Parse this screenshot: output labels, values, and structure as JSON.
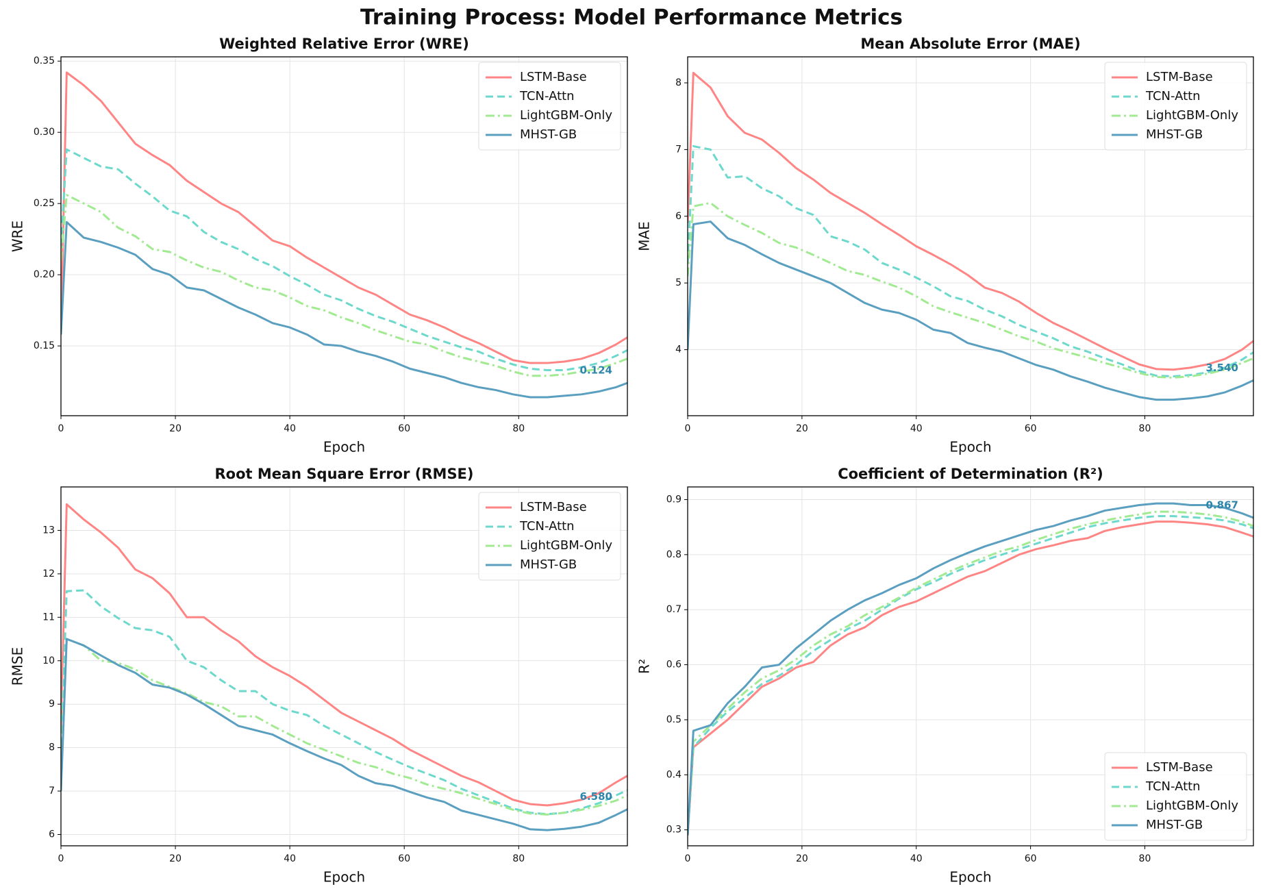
{
  "title": "Training Process: Model Performance Metrics",
  "chart_data": [
    {
      "type": "line",
      "title": "Weighted Relative Error (WRE)",
      "xlabel": "Epoch",
      "ylabel": "WRE",
      "xlim": [
        0,
        99
      ],
      "ylim": [
        0.101,
        0.353
      ],
      "xticks": [
        0,
        20,
        40,
        60,
        80
      ],
      "yticks": [
        0.15,
        {
          "value": 0.2,
          "label": "0.20"
        },
        0.25,
        {
          "value": 0.3,
          "label": "0.30"
        },
        0.35
      ],
      "grid": true,
      "legend": "upper right",
      "x": [
        0,
        1,
        4,
        7,
        10,
        13,
        16,
        19,
        22,
        25,
        28,
        31,
        34,
        37,
        40,
        43,
        46,
        49,
        52,
        55,
        58,
        61,
        64,
        67,
        70,
        73,
        76,
        79,
        82,
        85,
        88,
        91,
        94,
        97,
        99
      ],
      "series": [
        {
          "name": "LSTM-Base",
          "color": "#ff8585",
          "linestyle": "solid",
          "values": [
            0.16,
            0.342,
            0.333,
            0.322,
            0.307,
            0.292,
            0.284,
            0.277,
            0.266,
            0.258,
            0.25,
            0.244,
            0.234,
            0.224,
            0.22,
            0.212,
            0.205,
            0.198,
            0.191,
            0.186,
            0.179,
            0.172,
            0.168,
            0.163,
            0.157,
            0.152,
            0.146,
            0.14,
            0.138,
            0.138,
            0.139,
            0.141,
            0.145,
            0.151,
            0.156
          ]
        },
        {
          "name": "TCN-Attn",
          "color": "#6dd8cc",
          "linestyle": "dashed",
          "values": [
            0.22,
            0.288,
            0.282,
            0.276,
            0.274,
            0.264,
            0.255,
            0.245,
            0.241,
            0.23,
            0.223,
            0.218,
            0.211,
            0.206,
            0.199,
            0.193,
            0.186,
            0.182,
            0.176,
            0.171,
            0.167,
            0.162,
            0.157,
            0.153,
            0.149,
            0.146,
            0.141,
            0.137,
            0.134,
            0.133,
            0.133,
            0.135,
            0.138,
            0.143,
            0.147
          ]
        },
        {
          "name": "LightGBM-Only",
          "color": "#a2ea92",
          "linestyle": "dashdot",
          "values": [
            0.21,
            0.256,
            0.25,
            0.244,
            0.233,
            0.227,
            0.218,
            0.216,
            0.21,
            0.205,
            0.202,
            0.196,
            0.191,
            0.189,
            0.184,
            0.178,
            0.175,
            0.17,
            0.166,
            0.161,
            0.157,
            0.153,
            0.151,
            0.146,
            0.142,
            0.139,
            0.136,
            0.132,
            0.129,
            0.129,
            0.13,
            0.132,
            0.134,
            0.138,
            0.141
          ]
        },
        {
          "name": "MHST-GB",
          "color": "#5a9fc0",
          "linestyle": "solid",
          "values": [
            0.158,
            0.237,
            0.226,
            0.223,
            0.219,
            0.214,
            0.204,
            0.2,
            0.191,
            0.189,
            0.183,
            0.177,
            0.172,
            0.166,
            0.163,
            0.158,
            0.151,
            0.15,
            0.146,
            0.143,
            0.139,
            0.134,
            0.131,
            0.128,
            0.124,
            0.121,
            0.119,
            0.116,
            0.114,
            0.114,
            0.115,
            0.116,
            0.118,
            0.121,
            0.124
          ]
        }
      ],
      "annotation": {
        "text": "0.124",
        "value": 0.124,
        "color": "#2e86ab"
      }
    },
    {
      "type": "line",
      "title": "Mean Absolute Error (MAE)",
      "xlabel": "Epoch",
      "ylabel": "MAE",
      "xlim": [
        0,
        99
      ],
      "ylim": [
        3.01,
        8.39
      ],
      "xticks": [
        0,
        20,
        40,
        60,
        80
      ],
      "yticks": [
        4,
        5,
        6,
        7,
        8
      ],
      "grid": true,
      "legend": "upper right",
      "x": [
        0,
        1,
        4,
        7,
        10,
        13,
        16,
        19,
        22,
        25,
        28,
        31,
        34,
        37,
        40,
        43,
        46,
        49,
        52,
        55,
        58,
        61,
        64,
        67,
        70,
        73,
        76,
        79,
        82,
        85,
        88,
        91,
        94,
        97,
        99
      ],
      "series": [
        {
          "name": "LSTM-Base",
          "color": "#ff8585",
          "linestyle": "solid",
          "values": [
            5.9,
            8.15,
            7.93,
            7.5,
            7.25,
            7.15,
            6.95,
            6.72,
            6.55,
            6.35,
            6.2,
            6.05,
            5.88,
            5.72,
            5.55,
            5.42,
            5.28,
            5.12,
            4.93,
            4.85,
            4.72,
            4.55,
            4.4,
            4.28,
            4.15,
            4.02,
            3.9,
            3.78,
            3.71,
            3.7,
            3.73,
            3.78,
            3.86,
            4.0,
            4.13
          ]
        },
        {
          "name": "TCN-Attn",
          "color": "#6dd8cc",
          "linestyle": "dashed",
          "values": [
            5.3,
            7.05,
            7.0,
            6.58,
            6.6,
            6.42,
            6.3,
            6.12,
            6.02,
            5.7,
            5.62,
            5.5,
            5.3,
            5.2,
            5.08,
            4.95,
            4.8,
            4.73,
            4.6,
            4.5,
            4.37,
            4.27,
            4.17,
            4.05,
            3.97,
            3.87,
            3.78,
            3.68,
            3.61,
            3.6,
            3.62,
            3.66,
            3.73,
            3.85,
            3.96
          ]
        },
        {
          "name": "LightGBM-Only",
          "color": "#a2ea92",
          "linestyle": "dashdot",
          "values": [
            5.1,
            6.15,
            6.2,
            6.0,
            5.87,
            5.75,
            5.6,
            5.53,
            5.42,
            5.3,
            5.18,
            5.12,
            5.02,
            4.93,
            4.8,
            4.65,
            4.56,
            4.48,
            4.4,
            4.3,
            4.2,
            4.12,
            4.02,
            3.95,
            3.88,
            3.8,
            3.73,
            3.65,
            3.59,
            3.58,
            3.6,
            3.64,
            3.7,
            3.8,
            3.87
          ]
        },
        {
          "name": "MHST-GB",
          "color": "#5a9fc0",
          "linestyle": "solid",
          "values": [
            4.0,
            5.88,
            5.92,
            5.67,
            5.57,
            5.43,
            5.3,
            5.2,
            5.1,
            5.0,
            4.85,
            4.7,
            4.6,
            4.55,
            4.45,
            4.3,
            4.25,
            4.1,
            4.03,
            3.97,
            3.87,
            3.77,
            3.7,
            3.6,
            3.52,
            3.43,
            3.36,
            3.29,
            3.25,
            3.25,
            3.27,
            3.3,
            3.36,
            3.46,
            3.54
          ]
        }
      ],
      "annotation": {
        "text": "3.540",
        "value": 3.54,
        "color": "#2e86ab"
      }
    },
    {
      "type": "line",
      "title": "Root Mean Square Error (RMSE)",
      "xlabel": "Epoch",
      "ylabel": "RMSE",
      "xlim": [
        0,
        99
      ],
      "ylim": [
        5.74,
        14.0
      ],
      "xticks": [
        0,
        20,
        40,
        60,
        80
      ],
      "yticks": [
        6,
        7,
        8,
        9,
        10,
        11,
        12,
        13
      ],
      "grid": true,
      "legend": "upper right",
      "x": [
        0,
        1,
        4,
        7,
        10,
        13,
        16,
        19,
        22,
        25,
        28,
        31,
        34,
        37,
        40,
        43,
        46,
        49,
        52,
        55,
        58,
        61,
        64,
        67,
        70,
        73,
        76,
        79,
        82,
        85,
        88,
        91,
        94,
        97,
        99
      ],
      "series": [
        {
          "name": "LSTM-Base",
          "color": "#ff8585",
          "linestyle": "solid",
          "values": [
            8.5,
            13.6,
            13.25,
            12.95,
            12.6,
            12.1,
            11.9,
            11.55,
            11.0,
            11.0,
            10.7,
            10.45,
            10.1,
            9.85,
            9.65,
            9.4,
            9.1,
            8.8,
            8.6,
            8.4,
            8.2,
            7.95,
            7.75,
            7.55,
            7.35,
            7.2,
            7.0,
            6.8,
            6.7,
            6.67,
            6.72,
            6.8,
            6.95,
            7.2,
            7.35
          ]
        },
        {
          "name": "TCN-Attn",
          "color": "#6dd8cc",
          "linestyle": "dashed",
          "values": [
            7.8,
            11.6,
            11.62,
            11.25,
            10.98,
            10.75,
            10.7,
            10.55,
            10.0,
            9.85,
            9.55,
            9.3,
            9.3,
            9.0,
            8.85,
            8.75,
            8.5,
            8.3,
            8.1,
            7.9,
            7.72,
            7.55,
            7.4,
            7.25,
            7.05,
            6.9,
            6.75,
            6.6,
            6.5,
            6.47,
            6.5,
            6.6,
            6.72,
            6.9,
            7.02
          ]
        },
        {
          "name": "LightGBM-Only",
          "color": "#a2ea92",
          "linestyle": "dashdot",
          "values": [
            7.5,
            10.5,
            10.35,
            10.0,
            9.95,
            9.8,
            9.55,
            9.4,
            9.25,
            9.05,
            8.95,
            8.72,
            8.72,
            8.5,
            8.3,
            8.1,
            7.95,
            7.8,
            7.65,
            7.55,
            7.4,
            7.3,
            7.15,
            7.05,
            6.95,
            6.82,
            6.7,
            6.57,
            6.48,
            6.46,
            6.5,
            6.57,
            6.66,
            6.78,
            6.9
          ]
        },
        {
          "name": "MHST-GB",
          "color": "#5a9fc0",
          "linestyle": "solid",
          "values": [
            7.0,
            10.5,
            10.35,
            10.12,
            9.9,
            9.72,
            9.45,
            9.38,
            9.22,
            9.0,
            8.75,
            8.5,
            8.4,
            8.3,
            8.1,
            7.92,
            7.75,
            7.6,
            7.35,
            7.18,
            7.12,
            6.98,
            6.85,
            6.75,
            6.55,
            6.45,
            6.35,
            6.25,
            6.12,
            6.1,
            6.13,
            6.18,
            6.27,
            6.45,
            6.58
          ]
        }
      ],
      "annotation": {
        "text": "6.580",
        "value": 6.58,
        "color": "#2e86ab"
      }
    },
    {
      "type": "line",
      "title": "Coefficient of Determination (R²)",
      "xlabel": "Epoch",
      "ylabel": "R²",
      "xlim": [
        0,
        99
      ],
      "ylim": [
        0.271,
        0.923
      ],
      "xticks": [
        0,
        20,
        40,
        60,
        80
      ],
      "yticks": [
        0.3,
        0.4,
        0.5,
        0.6,
        0.7,
        0.8,
        0.9
      ],
      "grid": true,
      "legend": "lower right",
      "x": [
        0,
        1,
        4,
        7,
        10,
        13,
        16,
        19,
        22,
        25,
        28,
        31,
        34,
        37,
        40,
        43,
        46,
        49,
        52,
        55,
        58,
        61,
        64,
        67,
        70,
        73,
        76,
        79,
        82,
        85,
        88,
        91,
        94,
        97,
        99
      ],
      "series": [
        {
          "name": "LSTM-Base",
          "color": "#ff8585",
          "linestyle": "solid",
          "values": [
            0.29,
            0.45,
            0.475,
            0.5,
            0.53,
            0.56,
            0.575,
            0.595,
            0.605,
            0.635,
            0.655,
            0.668,
            0.69,
            0.705,
            0.715,
            0.73,
            0.745,
            0.76,
            0.77,
            0.785,
            0.8,
            0.81,
            0.817,
            0.825,
            0.83,
            0.843,
            0.85,
            0.855,
            0.86,
            0.86,
            0.858,
            0.855,
            0.85,
            0.84,
            0.833
          ]
        },
        {
          "name": "TCN-Attn",
          "color": "#6dd8cc",
          "linestyle": "dashed",
          "values": [
            0.29,
            0.45,
            0.485,
            0.515,
            0.54,
            0.565,
            0.58,
            0.6,
            0.625,
            0.645,
            0.665,
            0.68,
            0.7,
            0.72,
            0.737,
            0.75,
            0.765,
            0.778,
            0.79,
            0.8,
            0.81,
            0.82,
            0.83,
            0.84,
            0.85,
            0.857,
            0.862,
            0.867,
            0.87,
            0.87,
            0.868,
            0.866,
            0.862,
            0.855,
            0.848
          ]
        },
        {
          "name": "LightGBM-Only",
          "color": "#a2ea92",
          "linestyle": "dashdot",
          "values": [
            0.29,
            0.46,
            0.49,
            0.52,
            0.55,
            0.575,
            0.59,
            0.61,
            0.635,
            0.655,
            0.67,
            0.69,
            0.705,
            0.722,
            0.74,
            0.755,
            0.77,
            0.783,
            0.795,
            0.807,
            0.815,
            0.827,
            0.837,
            0.847,
            0.855,
            0.862,
            0.868,
            0.873,
            0.878,
            0.878,
            0.876,
            0.873,
            0.868,
            0.86,
            0.852
          ]
        },
        {
          "name": "MHST-GB",
          "color": "#5a9fc0",
          "linestyle": "solid",
          "values": [
            0.29,
            0.48,
            0.49,
            0.53,
            0.56,
            0.595,
            0.6,
            0.63,
            0.655,
            0.68,
            0.7,
            0.717,
            0.73,
            0.745,
            0.757,
            0.775,
            0.79,
            0.803,
            0.815,
            0.825,
            0.835,
            0.845,
            0.852,
            0.862,
            0.87,
            0.88,
            0.885,
            0.89,
            0.893,
            0.893,
            0.89,
            0.89,
            0.885,
            0.875,
            0.867
          ]
        }
      ],
      "annotation": {
        "text": "0.867",
        "value": 0.867,
        "color": "#2e86ab"
      }
    }
  ]
}
